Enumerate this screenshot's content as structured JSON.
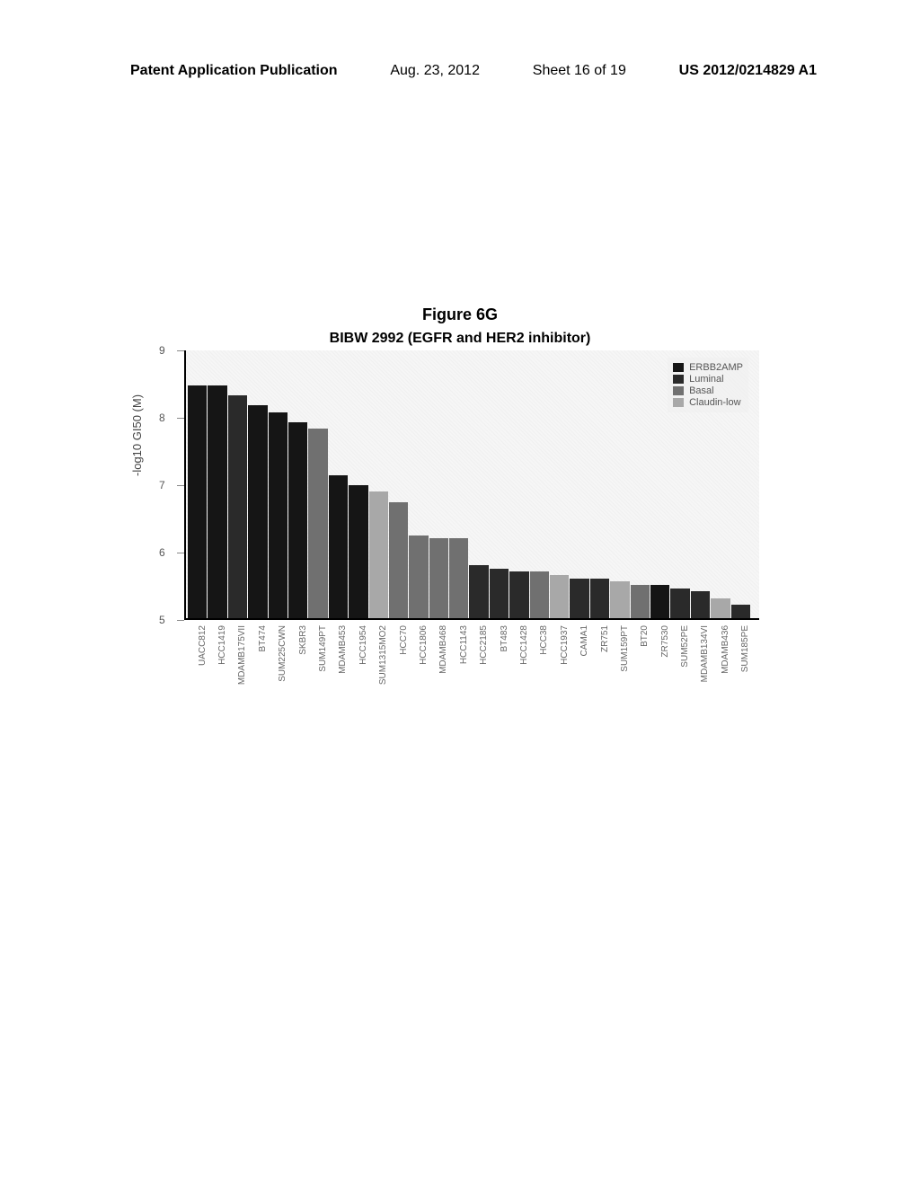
{
  "header": {
    "left": "Patent Application Publication",
    "date": "Aug. 23, 2012",
    "sheet": "Sheet 16 of 19",
    "patent": "US 2012/0214829 A1"
  },
  "figure": {
    "label": "Figure 6G",
    "title": "BIBW 2992 (EGFR and HER2 inhibitor)"
  },
  "chart": {
    "ylabel": "-log10 GI50 (M)",
    "ymin": 5,
    "ymax": 9,
    "yticks": [
      5,
      6,
      7,
      8,
      9
    ],
    "colors": {
      "ERBB2AMP": "#151515",
      "Luminal": "#2a2a2a",
      "Basal": "#707070",
      "Claudin-low": "#a8a8a8"
    },
    "legend": [
      {
        "label": "ERBB2AMP",
        "color": "#151515"
      },
      {
        "label": "Luminal",
        "color": "#2a2a2a"
      },
      {
        "label": "Basal",
        "color": "#707070"
      },
      {
        "label": "Claudin-low",
        "color": "#a8a8a8"
      }
    ],
    "bars": [
      {
        "label": "UACC812",
        "value": 8.5,
        "group": "ERBB2AMP"
      },
      {
        "label": "HCC1419",
        "value": 8.5,
        "group": "ERBB2AMP"
      },
      {
        "label": "MDAMB175VII",
        "value": 8.35,
        "group": "Luminal"
      },
      {
        "label": "BT474",
        "value": 8.2,
        "group": "ERBB2AMP"
      },
      {
        "label": "SUM225CWN",
        "value": 8.1,
        "group": "ERBB2AMP"
      },
      {
        "label": "SKBR3",
        "value": 7.95,
        "group": "ERBB2AMP"
      },
      {
        "label": "SUM149PT",
        "value": 7.85,
        "group": "Basal"
      },
      {
        "label": "MDAMB453",
        "value": 7.15,
        "group": "ERBB2AMP"
      },
      {
        "label": "HCC1954",
        "value": 7.0,
        "group": "ERBB2AMP"
      },
      {
        "label": "SUM1315MO2",
        "value": 6.9,
        "group": "Claudin-low"
      },
      {
        "label": "HCC70",
        "value": 6.75,
        "group": "Basal"
      },
      {
        "label": "HCC1806",
        "value": 6.25,
        "group": "Basal"
      },
      {
        "label": "MDAMB468",
        "value": 6.2,
        "group": "Basal"
      },
      {
        "label": "HCC1143",
        "value": 6.2,
        "group": "Basal"
      },
      {
        "label": "HCC2185",
        "value": 5.8,
        "group": "Luminal"
      },
      {
        "label": "BT483",
        "value": 5.75,
        "group": "Luminal"
      },
      {
        "label": "HCC1428",
        "value": 5.7,
        "group": "Luminal"
      },
      {
        "label": "HCC38",
        "value": 5.7,
        "group": "Basal"
      },
      {
        "label": "HCC1937",
        "value": 5.65,
        "group": "Claudin-low"
      },
      {
        "label": "CAMA1",
        "value": 5.6,
        "group": "Luminal"
      },
      {
        "label": "ZR751",
        "value": 5.6,
        "group": "Luminal"
      },
      {
        "label": "SUM159PT",
        "value": 5.55,
        "group": "Claudin-low"
      },
      {
        "label": "BT20",
        "value": 5.5,
        "group": "Basal"
      },
      {
        "label": "ZR7530",
        "value": 5.5,
        "group": "ERBB2AMP"
      },
      {
        "label": "SUM52PE",
        "value": 5.45,
        "group": "Luminal"
      },
      {
        "label": "MDAMB134VI",
        "value": 5.4,
        "group": "Luminal"
      },
      {
        "label": "MDAMB436",
        "value": 5.3,
        "group": "Claudin-low"
      },
      {
        "label": "SUM185PE",
        "value": 5.2,
        "group": "Luminal"
      }
    ]
  }
}
